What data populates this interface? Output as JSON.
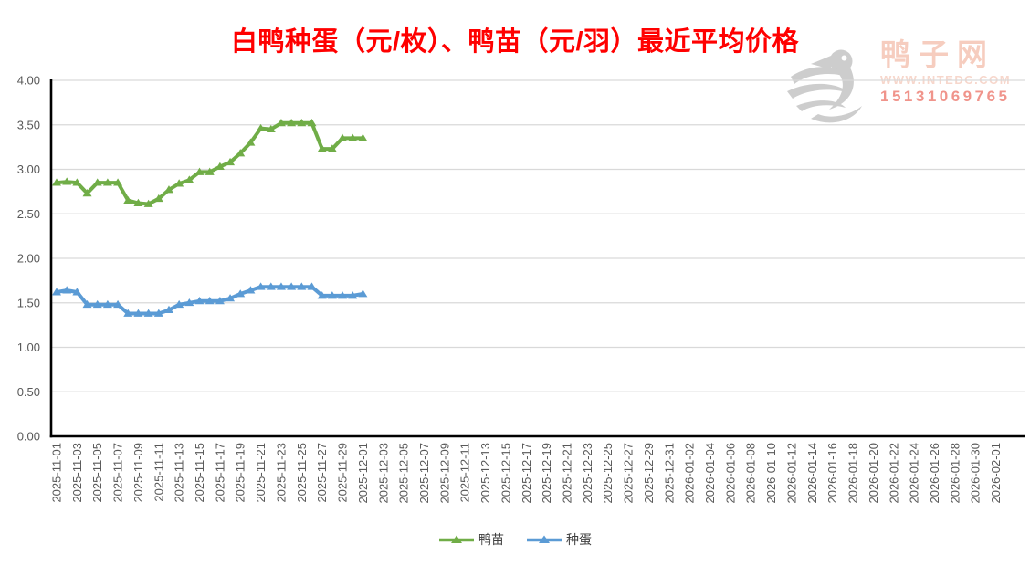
{
  "title": "白鸭种蛋（元/枚）、鸭苗（元/羽）最近平均价格",
  "watermark": {
    "brand": "鸭子网",
    "website": "WWW.INTEDC.COM",
    "phone": "15131069765",
    "logo": "duck-logo",
    "brand_color": "#F6CDBF",
    "website_color": "#F7D7CC",
    "phone_color": "#F0948B",
    "logo_color": "#CDCDCD"
  },
  "colors": {
    "title_red": "#FF0000",
    "axis_text": "#595959",
    "gridline": "#D9D9D9",
    "axis_line": "#000000",
    "background": "#FFFFFF"
  },
  "chart_data": {
    "type": "line",
    "title": "白鸭种蛋（元/枚）、鸭苗（元/羽）最近平均价格",
    "ylim": [
      0,
      4
    ],
    "ytick_step": 0.5,
    "ytick_labels": [
      "4.00",
      "3.50",
      "3.00",
      "2.50",
      "2.00",
      "1.50",
      "1.00",
      "0.50",
      "0.00"
    ],
    "grid": "horizontal",
    "legend_position": "bottom-center",
    "marker": "triangle-up",
    "x_tick_labels": [
      "2025-11-01",
      "2025-11-03",
      "2025-11-05",
      "2025-11-07",
      "2025-11-09",
      "2025-11-11",
      "2025-11-13",
      "2025-11-15",
      "2025-11-17",
      "2025-11-19",
      "2025-11-21",
      "2025-11-23",
      "2025-11-25",
      "2025-11-27",
      "2025-11-29",
      "2025-12-01",
      "2025-12-03",
      "2025-12-05",
      "2025-12-07",
      "2025-12-09",
      "2025-12-11",
      "2025-12-13",
      "2025-12-15",
      "2025-12-17",
      "2025-12-19",
      "2025-12-21",
      "2025-12-23",
      "2025-12-25",
      "2025-12-27",
      "2025-12-29",
      "2025-12-31",
      "2026-01-02",
      "2026-01-04",
      "2026-01-06",
      "2026-01-08",
      "2026-01-10",
      "2026-01-12",
      "2026-01-14",
      "2026-01-16",
      "2026-01-18",
      "2026-01-20",
      "2026-01-22",
      "2026-01-24",
      "2026-01-26",
      "2026-01-28",
      "2026-01-30",
      "2026-02-01"
    ],
    "x": [
      "2025-11-01",
      "2025-11-02",
      "2025-11-03",
      "2025-11-04",
      "2025-11-05",
      "2025-11-06",
      "2025-11-07",
      "2025-11-08",
      "2025-11-09",
      "2025-11-10",
      "2025-11-11",
      "2025-11-12",
      "2025-11-13",
      "2025-11-14",
      "2025-11-15",
      "2025-11-16",
      "2025-11-17",
      "2025-11-18",
      "2025-11-19",
      "2025-11-20",
      "2025-11-21",
      "2025-11-22",
      "2025-11-23",
      "2025-11-24",
      "2025-11-25",
      "2025-11-26",
      "2025-11-27",
      "2025-11-28",
      "2025-11-29",
      "2025-11-30",
      "2025-12-01"
    ],
    "series": [
      {
        "name": "鸭苗",
        "color": "#70AD47",
        "values": [
          2.85,
          2.86,
          2.85,
          2.73,
          2.85,
          2.85,
          2.85,
          2.65,
          2.62,
          2.61,
          2.67,
          2.77,
          2.84,
          2.88,
          2.97,
          2.97,
          3.03,
          3.08,
          3.18,
          3.3,
          3.46,
          3.45,
          3.52,
          3.52,
          3.52,
          3.52,
          3.23,
          3.23,
          3.35,
          3.35,
          3.35
        ]
      },
      {
        "name": "种蛋",
        "color": "#5B9BD5",
        "values": [
          1.62,
          1.64,
          1.62,
          1.48,
          1.48,
          1.48,
          1.48,
          1.38,
          1.38,
          1.38,
          1.38,
          1.42,
          1.48,
          1.5,
          1.52,
          1.52,
          1.52,
          1.55,
          1.6,
          1.64,
          1.68,
          1.68,
          1.68,
          1.68,
          1.68,
          1.68,
          1.58,
          1.58,
          1.58,
          1.58,
          1.6
        ]
      }
    ]
  }
}
